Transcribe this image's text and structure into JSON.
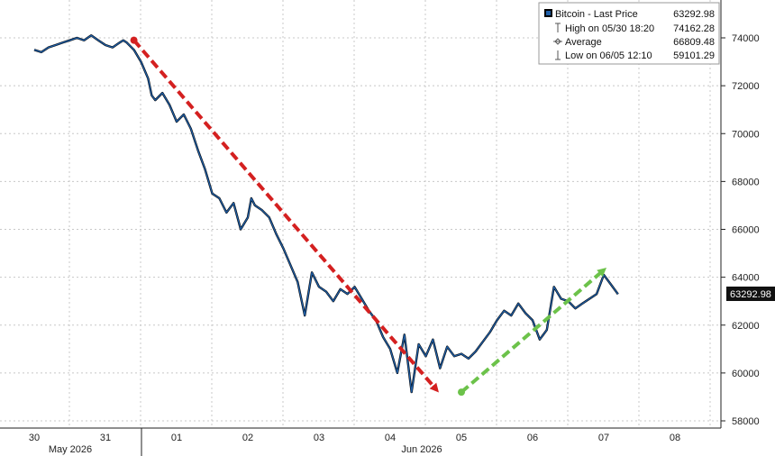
{
  "chart_data": {
    "type": "line",
    "title": "",
    "xlabel": "",
    "ylabel": "",
    "ylim": [
      57500,
      75000
    ],
    "y_ticks": [
      58000,
      60000,
      62000,
      64000,
      66000,
      68000,
      70000,
      72000,
      74000
    ],
    "y_tick_labels": [
      "58000",
      "60000",
      "62000",
      "64000",
      "66000",
      "68000",
      "70000",
      "72000",
      "74000"
    ],
    "x_day_labels": [
      "30",
      "31",
      "01",
      "02",
      "03",
      "04",
      "05",
      "06",
      "07",
      "08"
    ],
    "x_month_labels": [
      "May 2026",
      "Jun 2026"
    ],
    "grid": true,
    "legend_position": "top-right",
    "legend": {
      "series_label": "Bitcoin - Last Price",
      "series_value": "63292.98",
      "high_label": "High on 05/30 18:20",
      "high_value": "74162.28",
      "average_label": "Average",
      "average_value": "66809.48",
      "low_label": "Low on 06/05 12:10",
      "low_value": "59101.29"
    },
    "last_price_label": "63292.98",
    "colors": {
      "series": "#1f5fa8",
      "series_highlight": "#000000",
      "down_arrow": "#d42020",
      "up_arrow": "#6cc24a",
      "grid": "#c8c8c8",
      "badge": "#111111"
    },
    "series": [
      {
        "name": "Bitcoin - Last Price",
        "x": [
          0,
          0.1,
          0.2,
          0.3,
          0.4,
          0.5,
          0.6,
          0.7,
          0.8,
          0.9,
          1.0,
          1.1,
          1.2,
          1.25,
          1.3,
          1.4,
          1.5,
          1.6,
          1.65,
          1.7,
          1.8,
          1.9,
          2.0,
          2.1,
          2.2,
          2.3,
          2.4,
          2.5,
          2.6,
          2.7,
          2.8,
          2.9,
          3.0,
          3.05,
          3.1,
          3.2,
          3.3,
          3.4,
          3.5,
          3.6,
          3.7,
          3.8,
          3.9,
          4.0,
          4.1,
          4.2,
          4.3,
          4.4,
          4.5,
          4.6,
          4.7,
          4.8,
          4.9,
          5.0,
          5.1,
          5.2,
          5.3,
          5.4,
          5.5,
          5.6,
          5.7,
          5.8,
          5.9,
          6.0,
          6.1,
          6.2,
          6.3,
          6.4,
          6.5,
          6.6,
          6.7,
          6.8,
          6.9,
          7.0,
          7.1,
          7.15,
          7.2,
          7.3,
          7.4,
          7.5,
          7.6,
          7.7,
          7.8,
          7.9,
          8.0,
          8.1,
          8.2
        ],
        "values": [
          73500,
          73400,
          73600,
          73700,
          73800,
          73900,
          74000,
          73900,
          74100,
          73900,
          73700,
          73600,
          73800,
          73900,
          73800,
          73500,
          73000,
          72300,
          71600,
          71400,
          71700,
          71200,
          70500,
          70800,
          70200,
          69300,
          68500,
          67500,
          67300,
          66700,
          67100,
          66000,
          66500,
          67300,
          67000,
          66800,
          66500,
          65800,
          65200,
          64500,
          63800,
          62400,
          64200,
          63600,
          63400,
          63000,
          63500,
          63300,
          63600,
          63100,
          62600,
          62200,
          61500,
          61000,
          60000,
          61600,
          59200,
          61200,
          60700,
          61400,
          60200,
          61100,
          60700,
          60800,
          60600,
          60900,
          61300,
          61700,
          62200,
          62600,
          62400,
          62900,
          62500,
          62200,
          61400,
          61600,
          61800,
          63600,
          63100,
          63000,
          62700,
          62900,
          63100,
          63300,
          64100,
          63700,
          63292.98
        ]
      }
    ],
    "annotations": [
      {
        "type": "arrow",
        "style": "dashed",
        "color": "red",
        "from": [
          1.4,
          73900
        ],
        "to": [
          5.65,
          59300
        ]
      },
      {
        "type": "arrow",
        "style": "dashed",
        "color": "green",
        "from": [
          6.0,
          59200
        ],
        "to": [
          8.0,
          64300
        ]
      }
    ]
  }
}
